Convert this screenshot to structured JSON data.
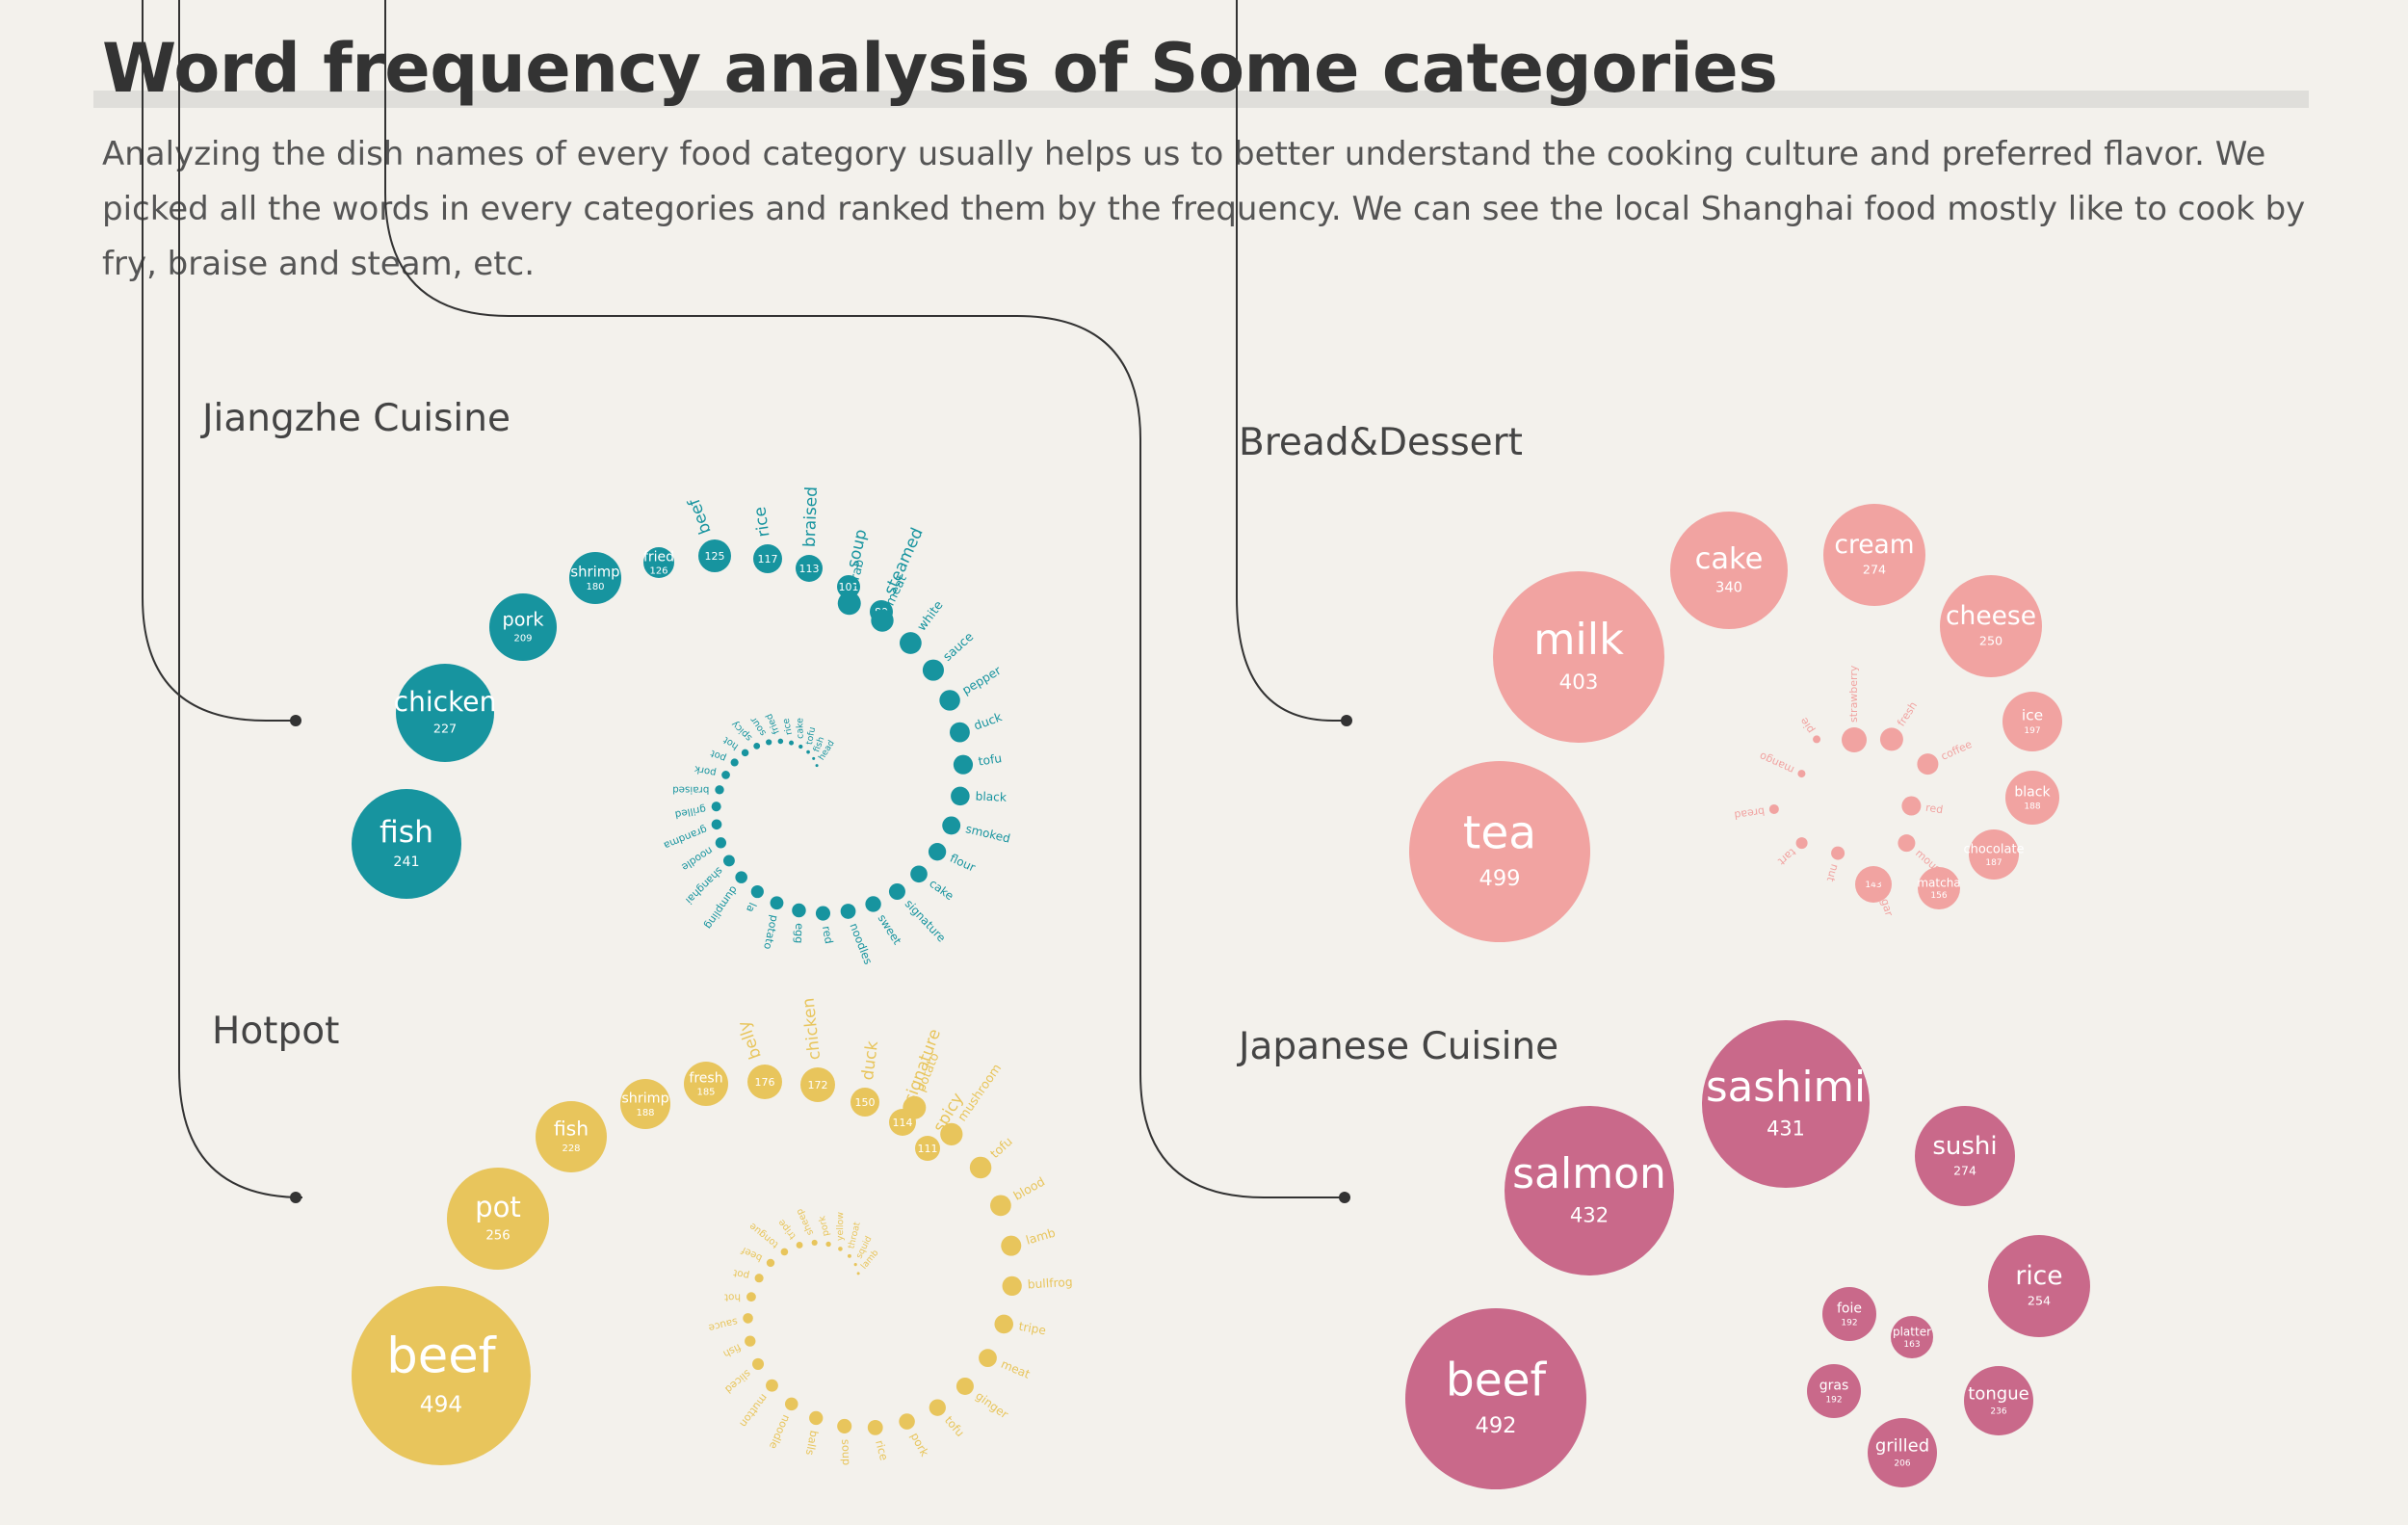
{
  "header": {
    "title": "Word frequency analysis of Some categories",
    "intro": "Analyzing the dish names of every food category usually helps us to better understand the cooking culture and preferred flavor. We picked all the words in every categories and ranked them by the frequency. We can see the local Shanghai food mostly like to cook by fry, braise and steam, etc."
  },
  "colors": {
    "background": "#f3f1ec",
    "jiangzhe": "#17949f",
    "hotpot": "#e8c55c",
    "dessert": "#f1a3a1",
    "japanese": "#c9698a",
    "line": "#333333"
  },
  "chart_data": [
    {
      "type": "bubble-spiral",
      "title": "Jiangzhe Cuisine",
      "color": "jiangzhe",
      "labeled": [
        {
          "word": "fish",
          "count": 241
        },
        {
          "word": "chicken",
          "count": 227
        },
        {
          "word": "pork",
          "count": 209
        },
        {
          "word": "shrimp",
          "count": 180
        },
        {
          "word": "fried",
          "count": 126
        },
        {
          "word": "beef",
          "count": 125
        },
        {
          "word": "rice",
          "count": 117
        },
        {
          "word": "braised",
          "count": 113
        },
        {
          "word": "soup",
          "count": 101
        },
        {
          "word": "steamed",
          "count": 89
        }
      ],
      "unlabeled": [
        "crab",
        "meat",
        "white",
        "sauce",
        "pepper",
        "duck",
        "tofu",
        "black",
        "smoked",
        "flour",
        "cake",
        "signature",
        "sweet",
        "noodles",
        "red",
        "egg",
        "potato",
        "la",
        "dumpling",
        "shanghai",
        "noodle",
        "grandma",
        "grilled",
        "braised",
        "pork",
        "pot",
        "hot",
        "spicy",
        "sour",
        "fried",
        "rice",
        "cake",
        "tofu",
        "fish",
        "head"
      ]
    },
    {
      "type": "bubble-spiral",
      "title": "Hotpot",
      "color": "hotpot",
      "labeled": [
        {
          "word": "beef",
          "count": 494
        },
        {
          "word": "pot",
          "count": 256
        },
        {
          "word": "fish",
          "count": 228
        },
        {
          "word": "shrimp",
          "count": 188
        },
        {
          "word": "fresh",
          "count": 185
        },
        {
          "word": "belly",
          "count": 176
        },
        {
          "word": "chicken",
          "count": 172
        },
        {
          "word": "duck",
          "count": 150
        },
        {
          "word": "signature",
          "count": 114
        },
        {
          "word": "spicy",
          "count": 111
        }
      ],
      "unlabeled": [
        "potato",
        "mushroom",
        "tofu",
        "blood",
        "lamb",
        "bullfrog",
        "tripe",
        "meat",
        "ginger",
        "tofu",
        "pork",
        "rice",
        "soup",
        "balls",
        "noodle",
        "mutton",
        "sliced",
        "fish",
        "sauce",
        "hot",
        "pot",
        "beef",
        "tongue",
        "tripe",
        "sheep",
        "pork",
        "yellow",
        "throat",
        "squid",
        "lamb"
      ]
    },
    {
      "type": "bubble-cluster",
      "title": "Bread&Dessert",
      "color": "dessert",
      "labeled": [
        {
          "word": "tea",
          "count": 499
        },
        {
          "word": "milk",
          "count": 403
        },
        {
          "word": "cake",
          "count": 340
        },
        {
          "word": "cream",
          "count": 274
        },
        {
          "word": "cheese",
          "count": 250
        },
        {
          "word": "ice",
          "count": 197
        },
        {
          "word": "black",
          "count": 188
        },
        {
          "word": "chocolate",
          "count": 187
        },
        {
          "word": "matcha",
          "count": 156
        },
        {
          "word": "",
          "count": 143
        }
      ],
      "unlabeled": [
        "strawberry",
        "fresh",
        "coffee",
        "red",
        "mousse",
        "sugar",
        "nut",
        "tart",
        "bread",
        "mango",
        "pie"
      ]
    },
    {
      "type": "bubble-cluster",
      "title": "Japanese Cuisine",
      "color": "japanese",
      "labeled": [
        {
          "word": "beef",
          "count": 492
        },
        {
          "word": "salmon",
          "count": 432
        },
        {
          "word": "sashimi",
          "count": 431
        },
        {
          "word": "sushi",
          "count": 274
        },
        {
          "word": "rice",
          "count": 254
        },
        {
          "word": "tongue",
          "count": 236
        },
        {
          "word": "grilled",
          "count": 206
        },
        {
          "word": "foie",
          "count": 192
        },
        {
          "word": "gras",
          "count": 192
        },
        {
          "word": "platter",
          "count": 163
        }
      ]
    }
  ]
}
